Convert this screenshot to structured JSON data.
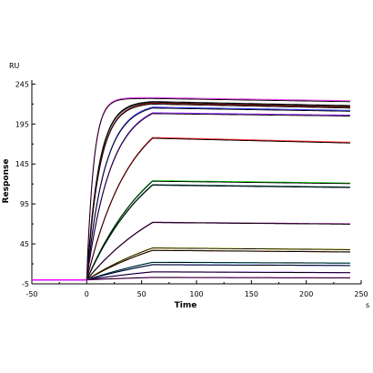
{
  "chart_data": {
    "type": "line",
    "title": "",
    "xlabel": "Time",
    "ylabel": "Response",
    "x_unit": "s",
    "y_unit": "RU",
    "xlim": [
      -50,
      250
    ],
    "ylim": [
      -5,
      250
    ],
    "x_ticks": [
      -50,
      0,
      50,
      100,
      150,
      200,
      250
    ],
    "y_ticks": [
      -5,
      45,
      95,
      145,
      195,
      245
    ],
    "x_tick_labels": [
      "-50",
      "0",
      "50",
      "100",
      "150",
      "200",
      "250"
    ],
    "y_tick_labels": [
      "-5",
      "45",
      "95",
      "145",
      "195",
      "245"
    ],
    "grid": false,
    "legend": "none",
    "fit_color": "#000000",
    "baseline_x": [
      -50,
      0
    ],
    "association_end": 60,
    "dissociation_end": 240,
    "series": [
      {
        "color": "#e040e0",
        "plateau": 228,
        "end": 224,
        "rate": 0.16
      },
      {
        "color": "#111111",
        "plateau": 223,
        "end": 218,
        "rate": 0.09
      },
      {
        "color": "#8b1a1a",
        "plateau": 221,
        "end": 216,
        "rate": 0.085
      },
      {
        "color": "#3a3aff",
        "plateau": 216,
        "end": 212,
        "rate": 0.06
      },
      {
        "color": "#9b30ff",
        "plateau": 209,
        "end": 206,
        "rate": 0.045
      },
      {
        "color": "#ff2020",
        "plateau": 178,
        "end": 172,
        "rate": 0.025
      },
      {
        "color": "#00cc00",
        "plateau": 124,
        "end": 121,
        "rate": 0.016
      },
      {
        "color": "#005050",
        "plateau": 119,
        "end": 116,
        "rate": 0.016
      },
      {
        "color": "#800080",
        "plateau": 72,
        "end": 70,
        "rate": 0.012
      },
      {
        "color": "#e0e000",
        "plateau": 40,
        "end": 38,
        "rate": 0.01
      },
      {
        "color": "#a05000",
        "plateau": 37,
        "end": 35,
        "rate": 0.01
      },
      {
        "color": "#00c8c8",
        "plateau": 22,
        "end": 21,
        "rate": 0.008
      },
      {
        "color": "#2040ff",
        "plateau": 19,
        "end": 18,
        "rate": 0.008
      },
      {
        "color": "#8000ff",
        "plateau": 10,
        "end": 9,
        "rate": 0.008
      },
      {
        "color": "#ff00ff",
        "plateau": 3,
        "end": 2.5,
        "rate": 0.008
      }
    ]
  }
}
